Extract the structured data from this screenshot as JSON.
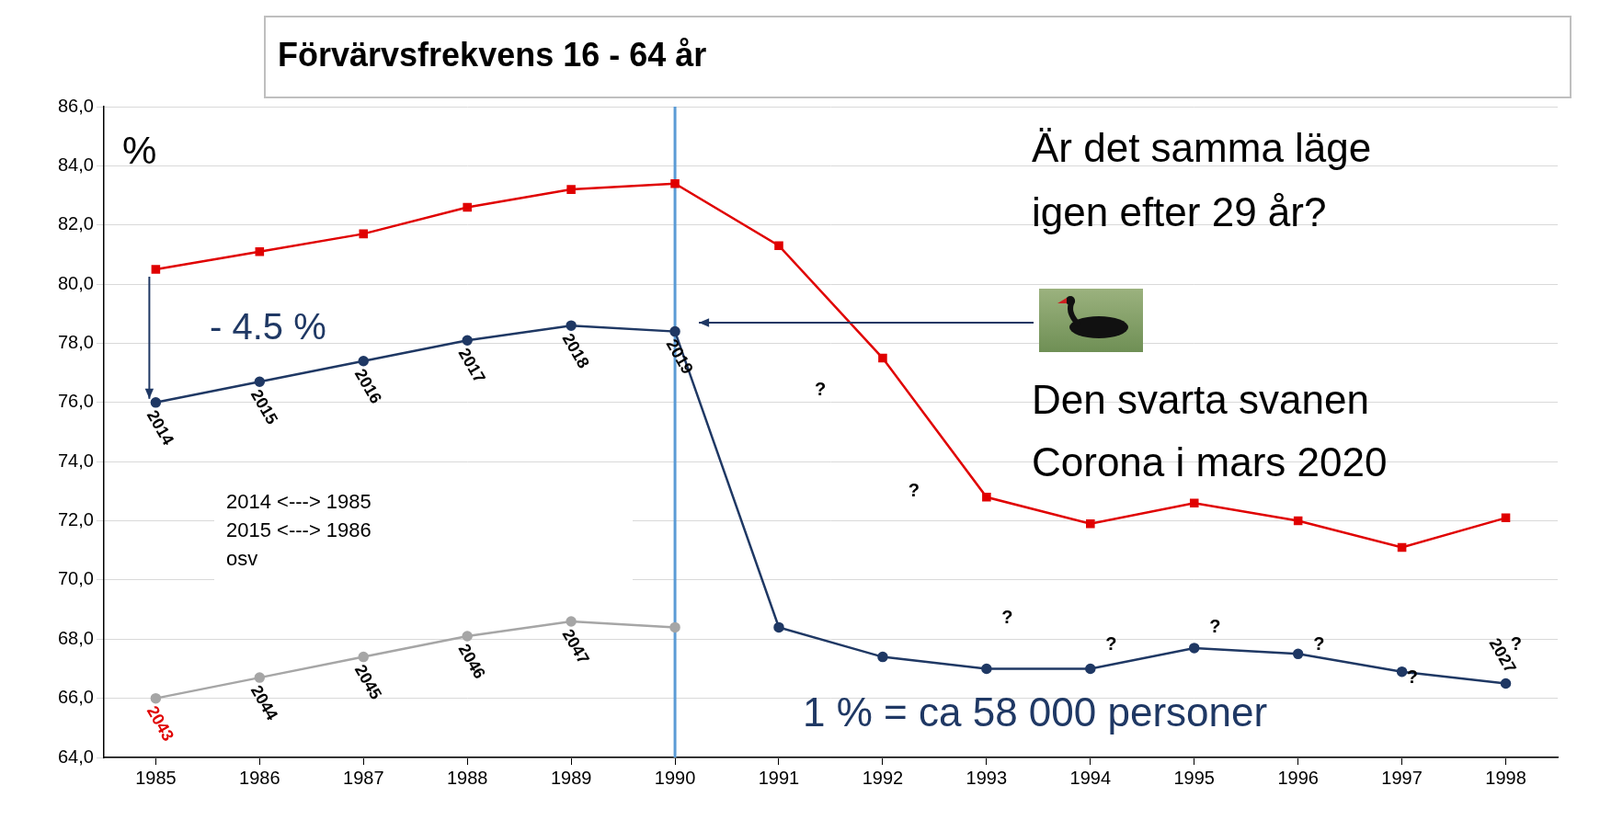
{
  "chart_data": {
    "type": "line",
    "title": "Förvärvsfrekvens 16 - 64 år",
    "categories": [
      "1985",
      "1986",
      "1987",
      "1988",
      "1989",
      "1990",
      "1991",
      "1992",
      "1993",
      "1994",
      "1995",
      "1996",
      "1997",
      "1998"
    ],
    "ylim": [
      64,
      86
    ],
    "yticks": [
      {
        "value": 64,
        "label": "64,0"
      },
      {
        "value": 66,
        "label": "66,0"
      },
      {
        "value": 68,
        "label": "68,0"
      },
      {
        "value": 70,
        "label": "70,0"
      },
      {
        "value": 72,
        "label": "72,0"
      },
      {
        "value": 74,
        "label": "74,0"
      },
      {
        "value": 76,
        "label": "76,0"
      },
      {
        "value": 78,
        "label": "78,0"
      },
      {
        "value": 80,
        "label": "80,0"
      },
      {
        "value": 82,
        "label": "82,0"
      },
      {
        "value": 84,
        "label": "84,0"
      },
      {
        "value": 86,
        "label": "86,0"
      }
    ],
    "grid": true,
    "series": [
      {
        "color": "#e00000",
        "marker": "square",
        "values": [
          80.5,
          81.1,
          81.7,
          82.6,
          83.2,
          83.4,
          81.3,
          77.5,
          72.8,
          71.9,
          72.6,
          72.0,
          71.1,
          72.1
        ]
      },
      {
        "color": "#1f3864",
        "marker": "circle",
        "values": [
          76.0,
          76.7,
          77.4,
          78.1,
          78.6,
          78.4,
          68.4,
          67.4,
          67.0,
          67.0,
          67.7,
          67.5,
          66.9,
          66.5
        ],
        "point_labels": [
          "2014",
          "2015",
          "2016",
          "2017",
          "2018",
          "2019",
          null,
          null,
          null,
          null,
          null,
          null,
          null,
          "2027"
        ]
      },
      {
        "color": "#a6a6a6",
        "marker": "circle",
        "values": [
          66.0,
          66.7,
          67.4,
          68.1,
          68.6,
          68.4,
          null,
          null,
          null,
          null,
          null,
          null,
          null,
          null
        ],
        "point_labels": [
          "2043",
          "2044",
          "2045",
          "2046",
          "2047",
          null,
          null,
          null,
          null,
          null,
          null,
          null,
          null,
          null
        ],
        "point_label_colors": [
          "#e00000",
          "#000000",
          "#000000",
          "#000000",
          "#000000",
          null,
          null,
          null,
          null,
          null,
          null,
          null,
          null,
          null
        ]
      }
    ],
    "vertical_line": "1990",
    "annotations": {
      "unit": "%",
      "headline": [
        "Är det samma läge",
        "igen efter 29 år?"
      ],
      "swan_text": [
        "Den svarta svanen",
        "Corona i mars 2020"
      ],
      "difference": "- 4.5 %",
      "mapping": [
        "2014 <---> 1985",
        "2015 <---> 1986",
        "osv"
      ],
      "scale_note": "1 % = ca 58 000 personer",
      "questions": [
        {
          "text": "?",
          "x": 1991.4,
          "y": 76.4
        },
        {
          "text": "?",
          "x": 1992.3,
          "y": 73.0
        },
        {
          "text": "?",
          "x": 1993.2,
          "y": 68.7
        },
        {
          "text": "?",
          "x": 1994.2,
          "y": 67.8
        },
        {
          "text": "?",
          "x": 1995.2,
          "y": 68.4
        },
        {
          "text": "?",
          "x": 1996.2,
          "y": 67.8
        },
        {
          "text": "?",
          "x": 1997.1,
          "y": 66.7
        },
        {
          "text": "?",
          "x": 1998.1,
          "y": 67.8
        }
      ]
    }
  }
}
